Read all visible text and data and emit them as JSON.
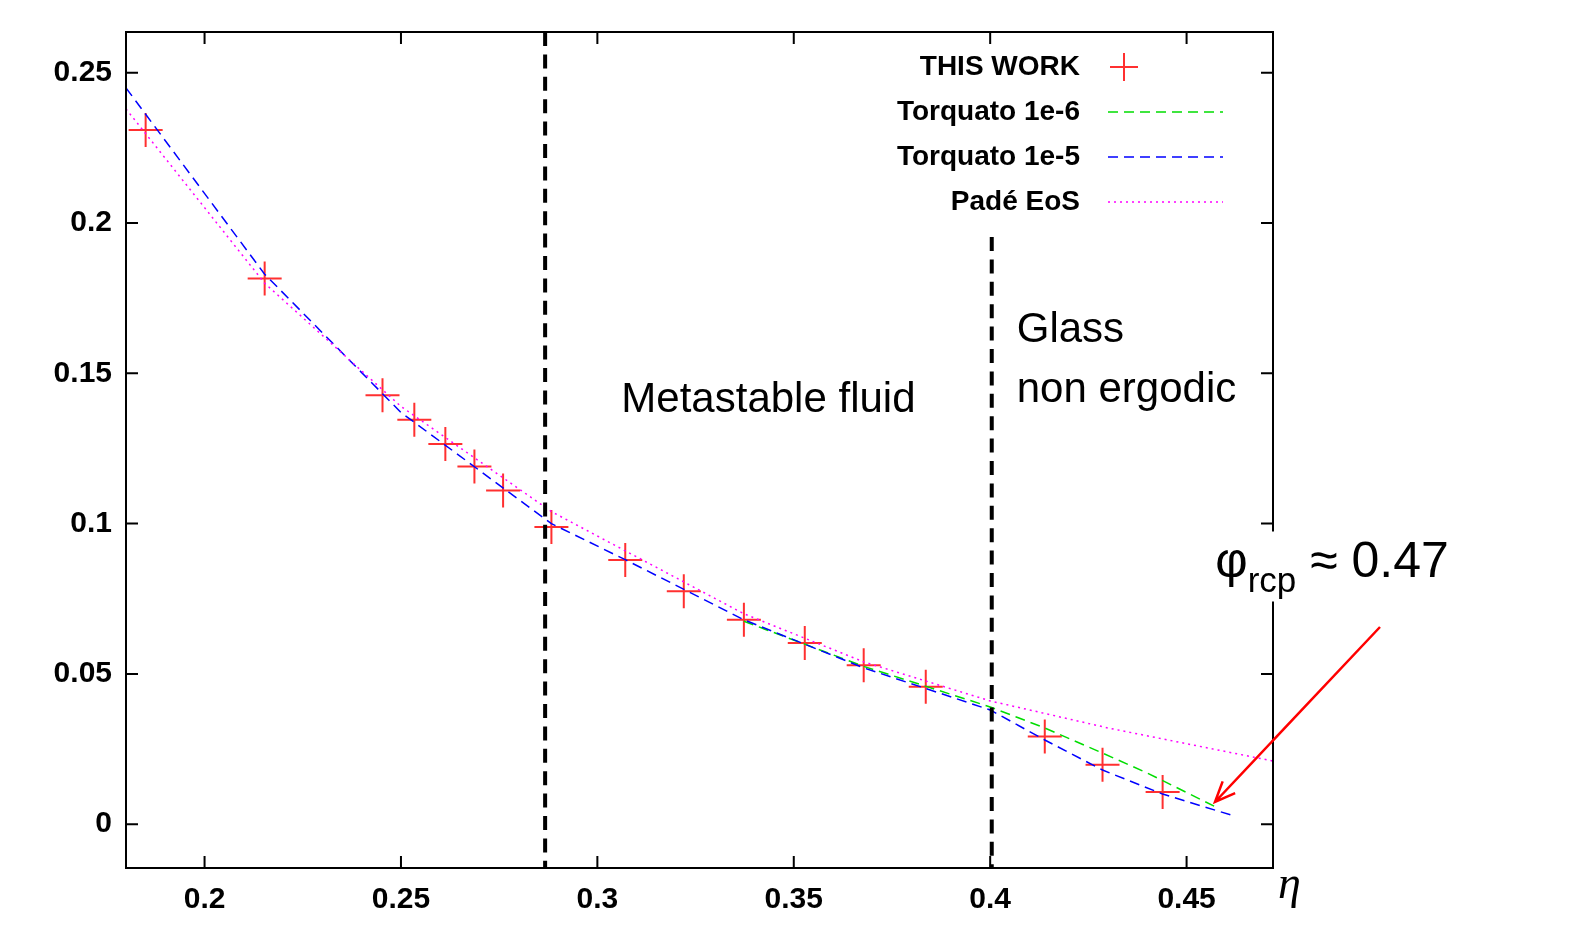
{
  "chart_data": {
    "type": "line",
    "xlabel": "η",
    "xlim": [
      0.18,
      0.472
    ],
    "ylim": [
      -0.0146,
      0.2636
    ],
    "xticks": [
      0.2,
      0.25,
      0.3,
      0.35,
      0.4,
      0.45
    ],
    "yticks": [
      0,
      0.05,
      0.1,
      0.15,
      0.2,
      0.25
    ],
    "grid": false,
    "legend": "top right",
    "series": [
      {
        "name": "THIS WORK",
        "type": "scatter",
        "marker": "cross",
        "color": "#ff3030",
        "x": [
          0.185,
          0.2153,
          0.2453,
          0.2534,
          0.2613,
          0.2687,
          0.276,
          0.2883,
          0.3071,
          0.322,
          0.3373,
          0.3528,
          0.3678,
          0.3836,
          0.4139,
          0.4286,
          0.4439
        ],
        "values": [
          0.231,
          0.1816,
          0.1427,
          0.1346,
          0.1265,
          0.119,
          0.111,
          0.0989,
          0.0879,
          0.0775,
          0.068,
          0.0603,
          0.0529,
          0.0457,
          0.0292,
          0.0198,
          0.0107
        ]
      },
      {
        "name": "Torquato 1e-6",
        "color": "#00dd00",
        "line_style": "dashed",
        "marker": "none",
        "x": [
          0.3373,
          0.3678,
          0.4,
          0.4139,
          0.428,
          0.44,
          0.457
        ],
        "values": [
          0.0675,
          0.0525,
          0.039,
          0.032,
          0.024,
          0.017,
          0.006
        ]
      },
      {
        "name": "Torquato 1e-5",
        "color": "#0000ff",
        "line_style": "dashed",
        "marker": "none",
        "x": [
          0.18,
          0.2153,
          0.25,
          0.2883,
          0.3071,
          0.3373,
          0.3678,
          0.4,
          0.4139,
          0.4286,
          0.4439,
          0.4614
        ],
        "values": [
          0.245,
          0.183,
          0.137,
          0.1,
          0.088,
          0.068,
          0.052,
          0.038,
          0.028,
          0.018,
          0.01,
          0.003
        ]
      },
      {
        "name": "Padé EoS",
        "color": "#ff00ff",
        "line_style": "dotted",
        "marker": "none",
        "x": [
          0.18,
          0.2153,
          0.25,
          0.2883,
          0.3373,
          0.3678,
          0.4,
          0.43,
          0.472
        ],
        "values": [
          0.238,
          0.18,
          0.139,
          0.104,
          0.07,
          0.054,
          0.041,
          0.032,
          0.021
        ]
      }
    ],
    "ref_lines": [
      {
        "axis": "x",
        "value": 0.2867,
        "line_style": "dashed",
        "color": "#000000"
      },
      {
        "axis": "x",
        "value": 0.4004,
        "line_style": "dashed",
        "color": "#000000"
      }
    ],
    "annotations": [
      "Metastable fluid",
      "Glass\nnon ergodic",
      {
        "text": "φ$_{rcp}$ ≈ 0.47",
        "x": 0.4573,
        "y": 0.0075
      }
    ]
  }
}
